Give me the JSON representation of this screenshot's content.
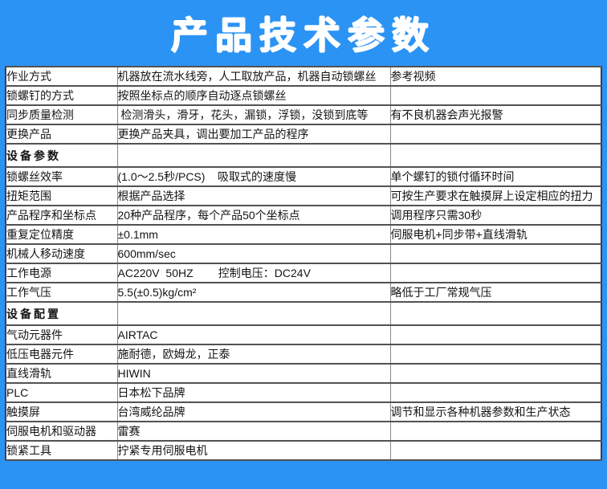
{
  "header": {
    "title": "产品技术参数"
  },
  "colors": {
    "background_blue": "#2B93F4",
    "section_red": "#FF0000",
    "border_dark": "#3f3f3f",
    "border_light": "#8a8a8a"
  },
  "table": {
    "rows": [
      {
        "type": "data",
        "label": "作业方式",
        "value": "机器放在流水线旁，人工取放产品，机器自动锁螺丝",
        "note": "参考视频"
      },
      {
        "type": "data",
        "label": "锁螺钉的方式",
        "value": "按照坐标点的顺序自动逐点锁螺丝",
        "note": ""
      },
      {
        "type": "data",
        "label": "同步质量检测",
        "value": " 检测滑头，滑牙，花头，漏锁，浮锁，没锁到底等",
        "note": "有不良机器会声光报警"
      },
      {
        "type": "data",
        "label": "更换产品",
        "value": "更换产品夹具，调出要加工产品的程序",
        "note": ""
      },
      {
        "type": "section",
        "label": "设备参数",
        "value": "",
        "note": ""
      },
      {
        "type": "data",
        "label": "锁螺丝效率",
        "value": "(1.0～2.5秒/PCS)    吸取式的速度慢",
        "note": "单个螺钉的锁付循环时间"
      },
      {
        "type": "data",
        "label": "扭矩范围",
        "value": "根据产品选择",
        "note": "可按生产要求在触摸屏上设定相应的扭力"
      },
      {
        "type": "data",
        "label": "产品程序和坐标点",
        "value": "20种产品程序，每个产品50个坐标点",
        "note": "调用程序只需30秒"
      },
      {
        "type": "data",
        "label": "重复定位精度",
        "value": "±0.1mm",
        "note": "伺服电机+同步带+直线滑轨"
      },
      {
        "type": "data",
        "label": "机械人移动速度",
        "value": "600mm/sec",
        "note": ""
      },
      {
        "type": "data",
        "label": "工作电源",
        "value": "AC220V  50HZ        控制电压：DC24V",
        "note": ""
      },
      {
        "type": "data",
        "label": "工作气压",
        "value": "5.5(±0.5)kg/cm²",
        "note": "略低于工厂常规气压"
      },
      {
        "type": "section",
        "label": "设备配置",
        "value": "",
        "note": ""
      },
      {
        "type": "data",
        "label": "气动元器件",
        "value": "AIRTAC",
        "note": ""
      },
      {
        "type": "data",
        "label": "低压电器元件",
        "value": "施耐德，欧姆龙，正泰",
        "note": ""
      },
      {
        "type": "data",
        "label": "直线滑轨",
        "value": "HIWIN",
        "note": ""
      },
      {
        "type": "data",
        "label": "PLC",
        "value": "日本松下品牌",
        "note": ""
      },
      {
        "type": "data",
        "label": "触摸屏",
        "value": "台湾威纶品牌",
        "note": "调节和显示各种机器参数和生产状态"
      },
      {
        "type": "data",
        "label": "伺服电机和驱动器",
        "value": "雷赛",
        "note": ""
      },
      {
        "type": "data",
        "label": "锁紧工具",
        "value": "拧紧专用伺服电机",
        "note": ""
      }
    ]
  }
}
